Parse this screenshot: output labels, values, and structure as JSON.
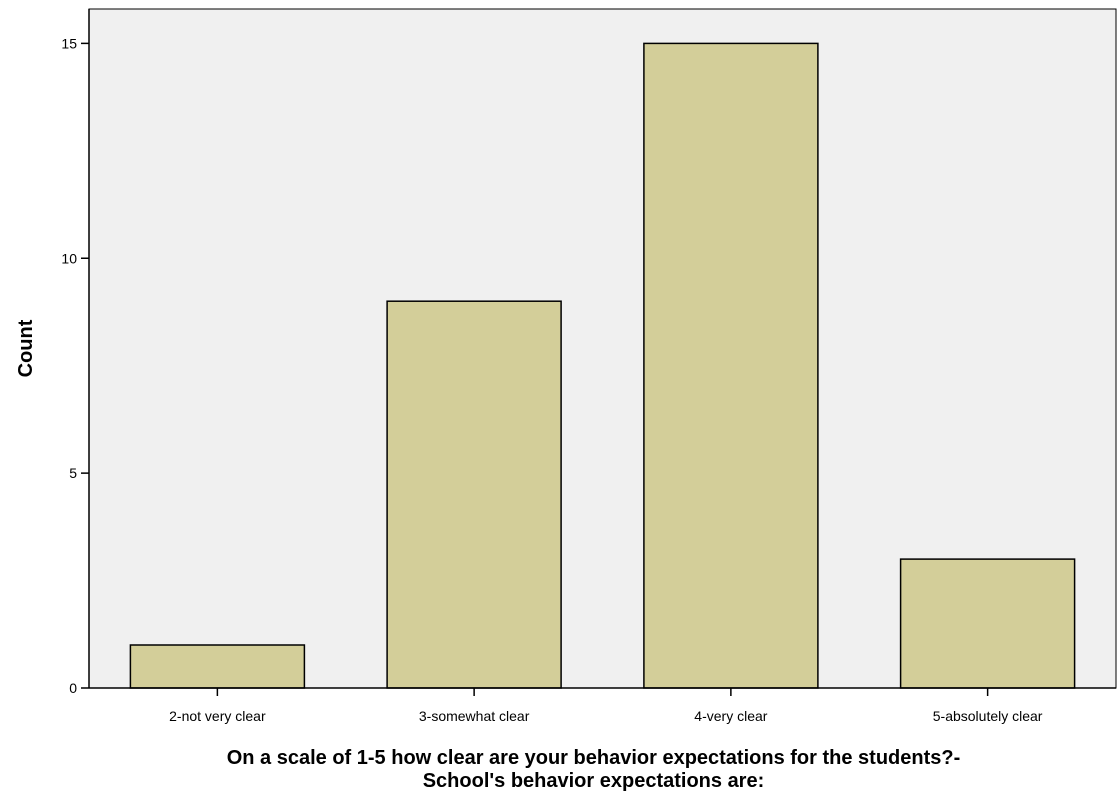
{
  "chart_data": {
    "type": "bar",
    "categories": [
      "2-not very clear",
      "3-somewhat clear",
      "4-very clear",
      "5-absolutely clear"
    ],
    "values": [
      1,
      9,
      15,
      3
    ],
    "xlabel_lines": [
      "On a scale of 1-5 how clear are your behavior expectations for the students?-",
      "School's behavior expectations are:"
    ],
    "ylabel": "Count",
    "ylim": [
      0,
      15.8
    ],
    "yticks": [
      0,
      5,
      10,
      15
    ],
    "grid": false,
    "legend": "none",
    "colors": {
      "bar_fill": "#d3ce99",
      "bar_stroke": "#000000",
      "plot_background": "#f0f0f0",
      "axis": "#000000"
    }
  }
}
